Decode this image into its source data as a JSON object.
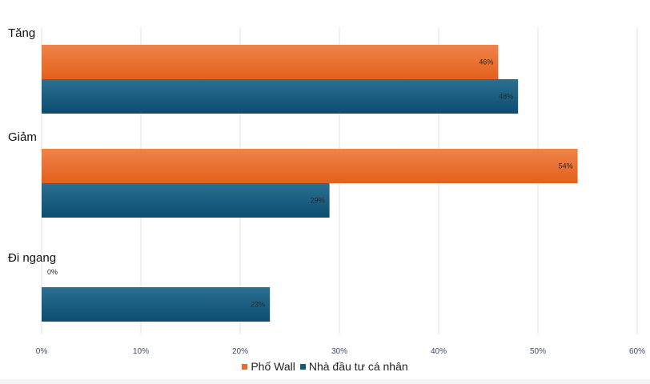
{
  "chart_data": {
    "type": "bar",
    "orientation": "horizontal",
    "categories": [
      "Tăng",
      "Giảm",
      "Đi ngang"
    ],
    "series": [
      {
        "name": "Phố Wall",
        "values": [
          46,
          54,
          0
        ],
        "color": "#ea6a2a"
      },
      {
        "name": "Nhà đầu tư cá nhân",
        "values": [
          48,
          29,
          23
        ],
        "color": "#0f5b80"
      }
    ],
    "value_labels": [
      [
        "46%",
        "54%",
        "0%"
      ],
      [
        "48%",
        "29%",
        "23%"
      ]
    ],
    "x_ticks": [
      "0%",
      "10%",
      "20%",
      "30%",
      "40%",
      "50%",
      "60%"
    ],
    "xlim": [
      0,
      60
    ],
    "grid": "vertical",
    "legend_position": "bottom-center",
    "title": "",
    "xlabel": "",
    "ylabel": ""
  }
}
